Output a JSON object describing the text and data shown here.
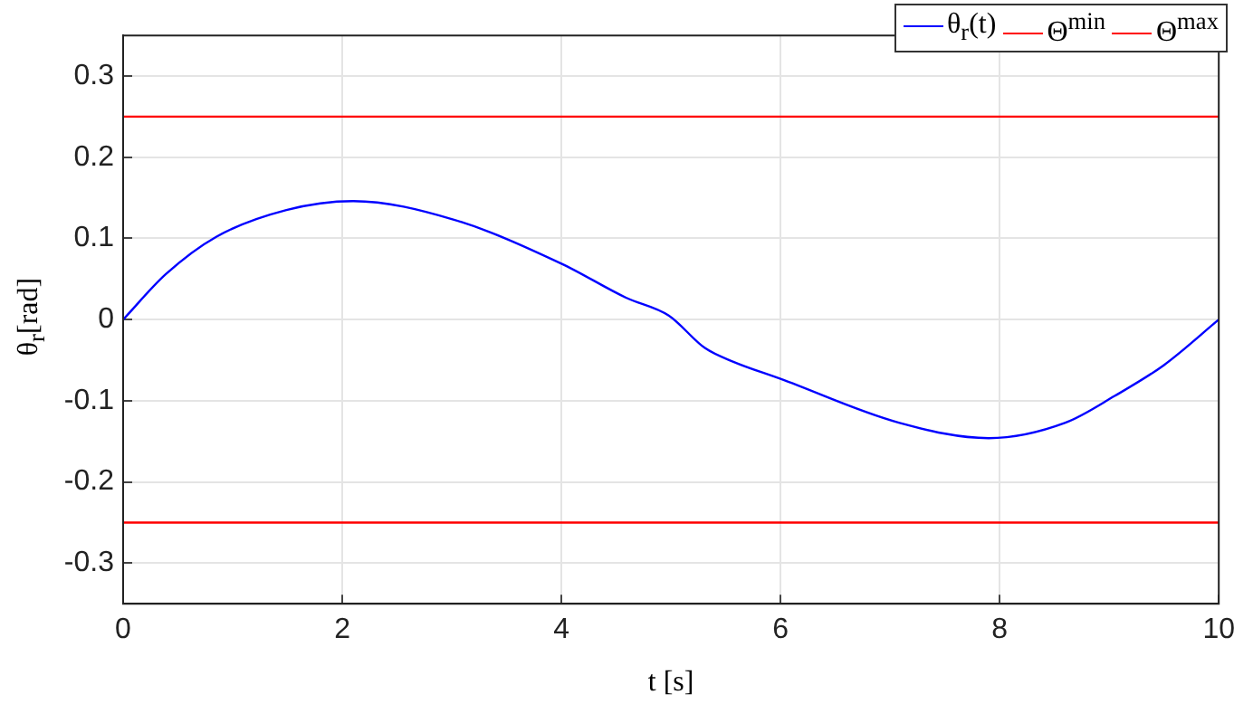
{
  "chart_data": {
    "type": "line",
    "xlabel": "t [s]",
    "ylabel": "θ$_{r}$[rad]",
    "xlim": [
      0,
      10
    ],
    "xticks": [
      0,
      2,
      4,
      6,
      8,
      10
    ],
    "ylim": [
      -0.35,
      0.35
    ],
    "yticks": [
      -0.3,
      -0.2,
      -0.1,
      0,
      0.1,
      0.2,
      0.3
    ],
    "grid": true,
    "legend": "top right",
    "marker": "none",
    "line_style": "solid",
    "series": [
      {
        "name": "θ$_{r}$(t)",
        "color": "#0000ff",
        "x": [
          0,
          0.39,
          0.85,
          1.49,
          2.1,
          3.02,
          4,
          4.59,
          4.98,
          5.31,
          5.57,
          6,
          7.08,
          7.9,
          8.6,
          9.05,
          9.5,
          10
        ],
        "values": [
          0,
          0.056,
          0.102,
          0.135,
          0.146,
          0.123,
          0.069,
          0.027,
          0.005,
          -0.035,
          -0.052,
          -0.073,
          -0.127,
          -0.146,
          -0.127,
          -0.094,
          -0.056,
          0
        ]
      },
      {
        "name": "Θ$^{min}$",
        "color": "#ff0000",
        "x": [
          0,
          10
        ],
        "values": [
          -0.25,
          -0.25
        ]
      },
      {
        "name": "Θ$^{max}$",
        "color": "#ff0000",
        "x": [
          0,
          10
        ],
        "values": [
          0.25,
          0.25
        ]
      }
    ]
  }
}
